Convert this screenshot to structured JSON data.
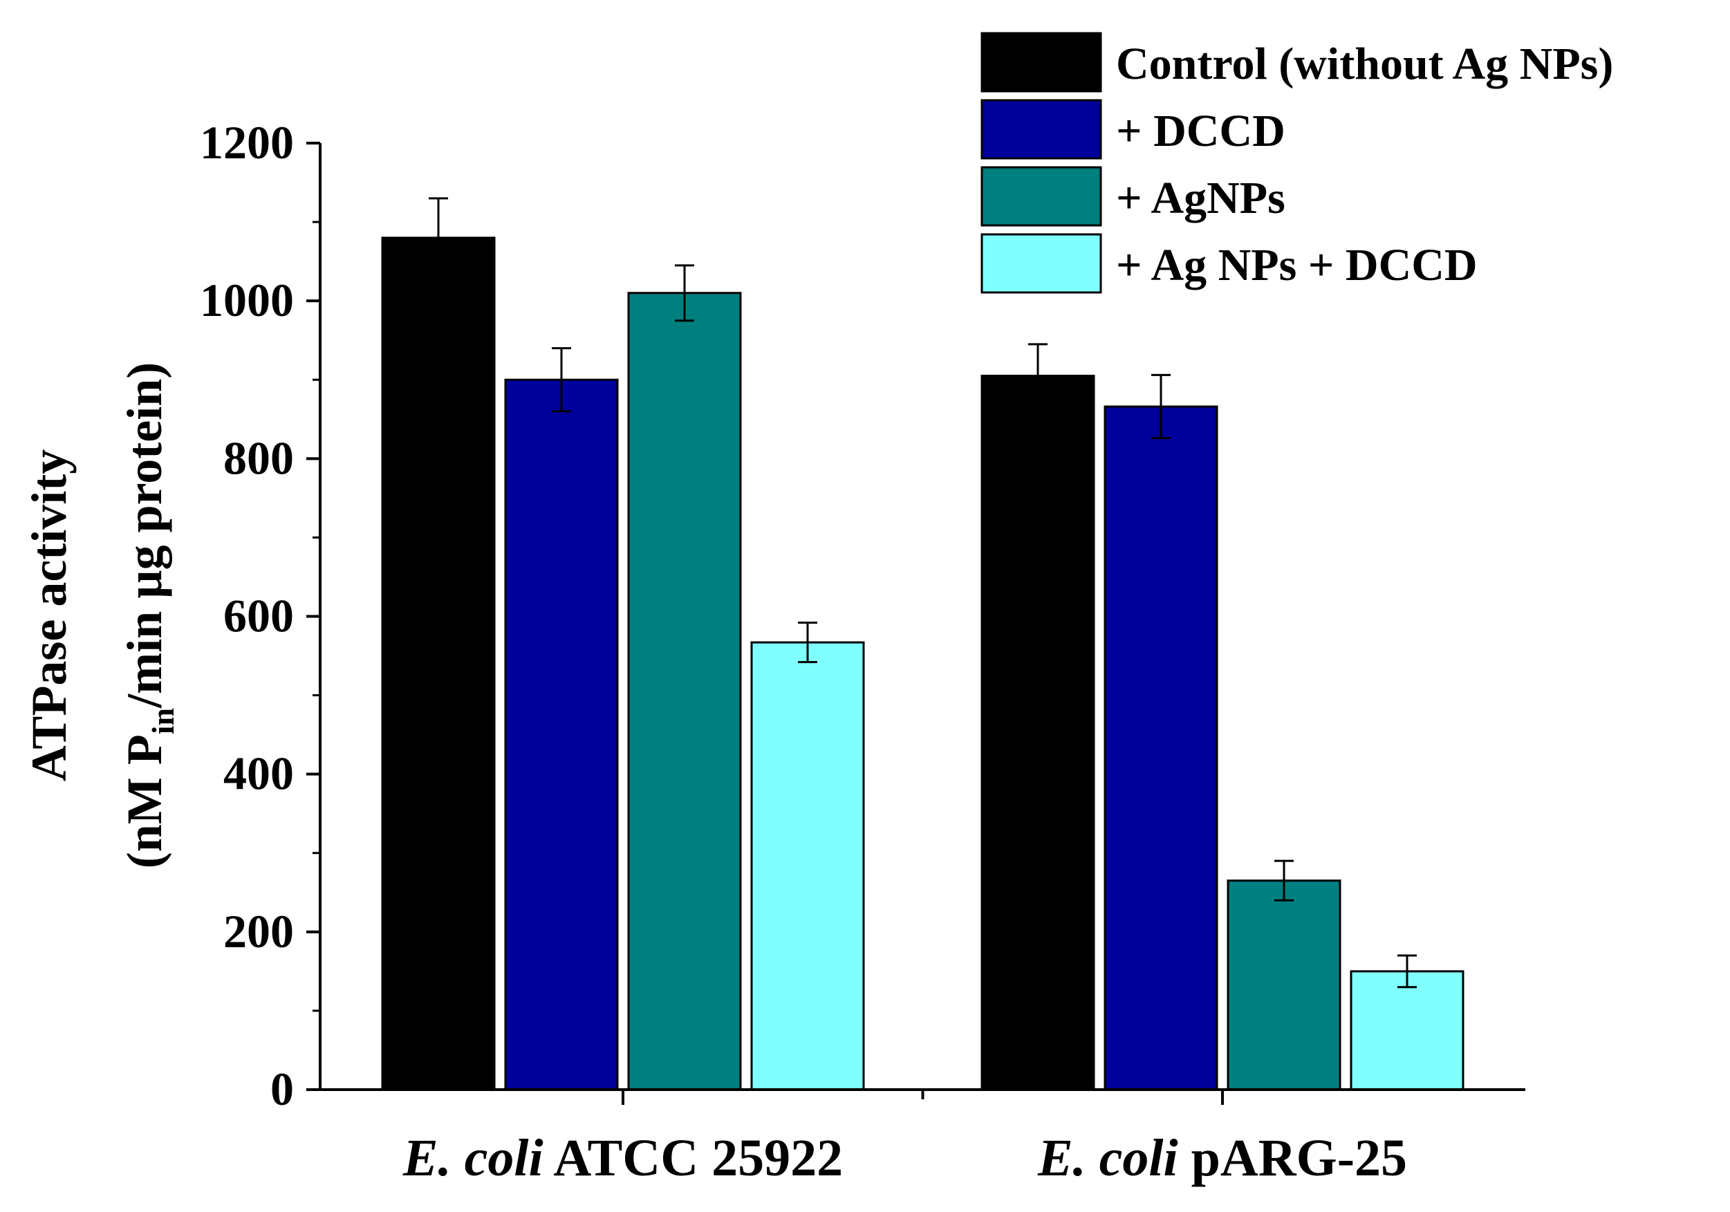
{
  "chart_data": {
    "type": "bar",
    "categories": [
      {
        "italic": "E. coli",
        "rest": " ATCC 25922"
      },
      {
        "italic": "E. coli",
        "rest": " pARG-25"
      }
    ],
    "series": [
      {
        "name": "Control (without Ag NPs)",
        "color": "#000000",
        "values": [
          1080,
          905
        ],
        "errors": [
          50,
          40
        ]
      },
      {
        "name": "+ DCCD",
        "color": "#00009c",
        "values": [
          900,
          866
        ],
        "errors": [
          40,
          40
        ]
      },
      {
        "name": "+ AgNPs",
        "color": "#007f7f",
        "values": [
          1010,
          265
        ],
        "errors": [
          35,
          25
        ]
      },
      {
        "name": "+ Ag NPs + DCCD",
        "color": "#80ffff",
        "values": [
          567,
          150
        ],
        "errors": [
          25,
          20
        ]
      }
    ],
    "ylabel_line1": "ATPase activity",
    "ylabel_line2_pre": "(nM P",
    "ylabel_line2_sub": "in",
    "ylabel_line2_post": "/min µg protein)",
    "ylim": [
      0,
      1200
    ],
    "yticks": [
      "0",
      "200",
      "400",
      "600",
      "800",
      "1000",
      "1200"
    ],
    "legend_position": "top-right"
  }
}
